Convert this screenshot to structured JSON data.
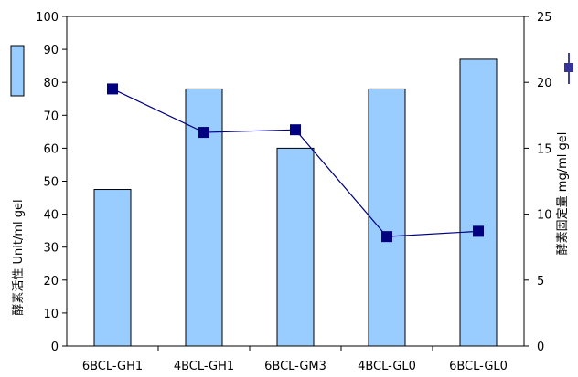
{
  "chart_data": {
    "type": "bar",
    "categories": [
      "6BCL-GH1",
      "4BCL-GH1",
      "6BCL-GM3",
      "4BCL-GL0",
      "6BCL-GL0"
    ],
    "series": [
      {
        "type": "bar",
        "axis": "left",
        "values": [
          47.5,
          78,
          60,
          78,
          87
        ],
        "color": "#99ccff"
      },
      {
        "type": "line",
        "axis": "right",
        "values": [
          19.5,
          16.2,
          16.4,
          8.3,
          8.7
        ],
        "color": "#000080"
      }
    ],
    "ylim": [
      0,
      100
    ],
    "y2lim": [
      0,
      25
    ],
    "ylabel": "酵素活性  Unit/ml gel",
    "y2label": "酵素固定量  mg/ml gel",
    "yticks": [
      "0",
      "10",
      "20",
      "30",
      "40",
      "50",
      "60",
      "70",
      "80",
      "90",
      "100"
    ],
    "y2ticks": [
      "0",
      "5",
      "10",
      "15",
      "20",
      "25"
    ],
    "grid": false,
    "legend": "side"
  }
}
